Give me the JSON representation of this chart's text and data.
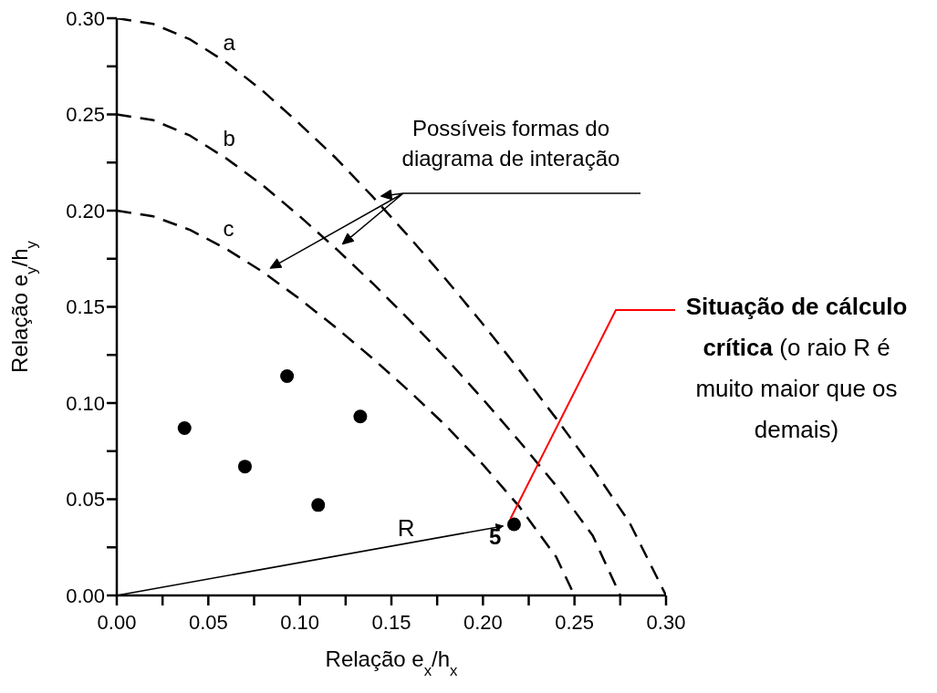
{
  "chart_data": {
    "type": "scatter",
    "xlabel": "Relação e$_{x}$/h$_{x}$",
    "ylabel": "Relação e$_{y}$/h$_{y}$",
    "xlim": [
      0,
      0.3
    ],
    "ylim": [
      0,
      0.3
    ],
    "xticks": [
      {
        "value": 0,
        "label": "0.00"
      },
      {
        "value": 0.025,
        "label": null
      },
      {
        "value": 0.05,
        "label": "0.05"
      },
      {
        "value": 0.075,
        "label": null
      },
      {
        "value": 0.1,
        "label": "0.10"
      },
      {
        "value": 0.125,
        "label": null
      },
      {
        "value": 0.15,
        "label": "0.15"
      },
      {
        "value": 0.175,
        "label": null
      },
      {
        "value": 0.2,
        "label": "0.20"
      },
      {
        "value": 0.225,
        "label": null
      },
      {
        "value": 0.25,
        "label": "0.25"
      },
      {
        "value": 0.275,
        "label": null
      },
      {
        "value": 0.3,
        "label": "0.30"
      }
    ],
    "yticks": [
      {
        "value": 0,
        "label": "0.00"
      },
      {
        "value": 0.025,
        "label": null
      },
      {
        "value": 0.05,
        "label": "0.05"
      },
      {
        "value": 0.075,
        "label": null
      },
      {
        "value": 0.1,
        "label": "0.10"
      },
      {
        "value": 0.125,
        "label": null
      },
      {
        "value": 0.15,
        "label": "0.15"
      },
      {
        "value": 0.175,
        "label": null
      },
      {
        "value": 0.2,
        "label": "0.20"
      },
      {
        "value": 0.225,
        "label": null
      },
      {
        "value": 0.25,
        "label": "0.25"
      },
      {
        "value": 0.275,
        "label": null
      },
      {
        "value": 0.3,
        "label": "0.30"
      }
    ],
    "series": [
      {
        "color": "#000000",
        "marker": "circle",
        "x": [
          0.037,
          0.07,
          0.093,
          0.11,
          0.133,
          0.217
        ],
        "values": [
          0.087,
          0.067,
          0.114,
          0.047,
          0.093,
          0.037
        ]
      },
      {
        "type": "line",
        "name": "a",
        "color": "#000000",
        "marker": "none",
        "line_style": "dashed",
        "x": [
          0,
          0.02,
          0.04,
          0.06,
          0.08,
          0.1,
          0.12,
          0.14,
          0.16,
          0.18,
          0.2,
          0.22,
          0.24,
          0.26,
          0.28,
          0.3
        ],
        "values": [
          0.3,
          0.297,
          0.289,
          0.277,
          0.262,
          0.245,
          0.227,
          0.207,
          0.186,
          0.164,
          0.141,
          0.117,
          0.092,
          0.066,
          0.038,
          0
        ]
      },
      {
        "type": "line",
        "name": "b",
        "color": "#000000",
        "marker": "none",
        "line_style": "dashed",
        "x": [
          0,
          0.02,
          0.04,
          0.06,
          0.08,
          0.1,
          0.12,
          0.14,
          0.16,
          0.18,
          0.2,
          0.22,
          0.24,
          0.26,
          0.275
        ],
        "values": [
          0.25,
          0.247,
          0.239,
          0.227,
          0.213,
          0.197,
          0.18,
          0.162,
          0.143,
          0.123,
          0.102,
          0.08,
          0.057,
          0.031,
          0
        ]
      },
      {
        "type": "line",
        "name": "c",
        "color": "#000000",
        "marker": "none",
        "line_style": "dashed",
        "x": [
          0,
          0.02,
          0.04,
          0.06,
          0.08,
          0.1,
          0.12,
          0.14,
          0.16,
          0.18,
          0.2,
          0.22,
          0.24,
          0.25
        ],
        "values": [
          0.2,
          0.197,
          0.19,
          0.18,
          0.168,
          0.154,
          0.139,
          0.123,
          0.106,
          0.088,
          0.068,
          0.046,
          0.02,
          0
        ]
      }
    ],
    "annotations": [
      "Possíveis formas do diagrama de interação",
      "R",
      {
        "text": "5",
        "x": 0.217,
        "y": 0.037
      },
      {
        "text": "Situação de cálculo crítica",
        "x": 0.217,
        "y": 0.037
      },
      "(o raio R é muito maior que os demais)"
    ]
  }
}
